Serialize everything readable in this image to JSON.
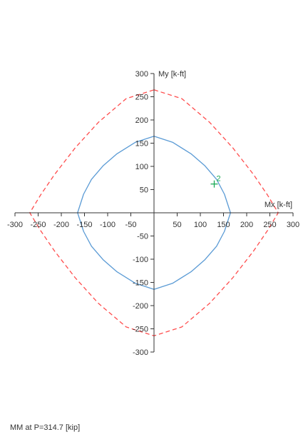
{
  "chart_data": {
    "type": "line",
    "xlabel": "Mx [k-ft]",
    "ylabel": "My [k-ft]",
    "xlim": [
      -300,
      300
    ],
    "ylim": [
      -300,
      300
    ],
    "x_ticks": [
      -300,
      -250,
      -200,
      -150,
      -100,
      -50,
      50,
      100,
      150,
      200,
      250,
      300
    ],
    "y_ticks": [
      300,
      250,
      200,
      150,
      100,
      50,
      -50,
      -100,
      -150,
      -200,
      -250,
      -300
    ],
    "grid": false,
    "series": [
      {
        "style": "solid",
        "color": "#5b9bd5",
        "points": [
          [
            0,
            165
          ],
          [
            40,
            152
          ],
          [
            80,
            127
          ],
          [
            110,
            101
          ],
          [
            135,
            72
          ],
          [
            152,
            40
          ],
          [
            165,
            0
          ],
          [
            152,
            -40
          ],
          [
            135,
            -72
          ],
          [
            110,
            -101
          ],
          [
            80,
            -127
          ],
          [
            40,
            -152
          ],
          [
            0,
            -165
          ],
          [
            -40,
            -152
          ],
          [
            -80,
            -127
          ],
          [
            -110,
            -101
          ],
          [
            -135,
            -72
          ],
          [
            -152,
            -40
          ],
          [
            -165,
            0
          ],
          [
            -152,
            40
          ],
          [
            -135,
            72
          ],
          [
            -110,
            101
          ],
          [
            -80,
            127
          ],
          [
            -40,
            152
          ],
          [
            0,
            165
          ]
        ]
      },
      {
        "style": "dashed",
        "color": "#ff4d4d",
        "points": [
          [
            0,
            265
          ],
          [
            60,
            246
          ],
          [
            120,
            195
          ],
          [
            170,
            140
          ],
          [
            215,
            82
          ],
          [
            245,
            38
          ],
          [
            268,
            0
          ],
          [
            245,
            -38
          ],
          [
            215,
            -82
          ],
          [
            170,
            -140
          ],
          [
            120,
            -195
          ],
          [
            60,
            -246
          ],
          [
            0,
            -265
          ],
          [
            -60,
            -246
          ],
          [
            -120,
            -195
          ],
          [
            -170,
            -140
          ],
          [
            -215,
            -82
          ],
          [
            -245,
            -38
          ],
          [
            -268,
            0
          ],
          [
            -245,
            38
          ],
          [
            -215,
            82
          ],
          [
            -170,
            140
          ],
          [
            -120,
            195
          ],
          [
            -60,
            246
          ],
          [
            0,
            265
          ]
        ]
      }
    ],
    "markers": [
      {
        "label": "2",
        "x": 130,
        "y": 62,
        "color": "#1aaa55"
      }
    ]
  },
  "caption": "MM at P=314.7 [kip]"
}
